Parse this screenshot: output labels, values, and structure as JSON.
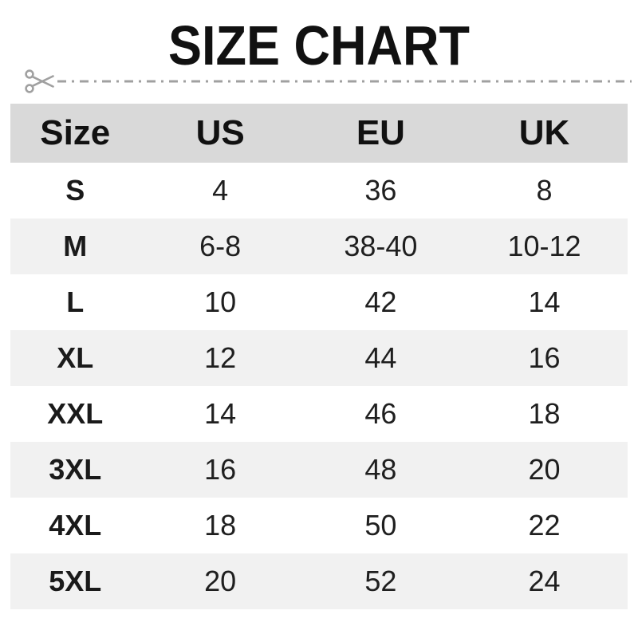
{
  "chart_data": {
    "type": "table",
    "title": "SIZE CHART",
    "columns": [
      "Size",
      "US",
      "EU",
      "UK"
    ],
    "rows": [
      [
        "S",
        "4",
        "36",
        "8"
      ],
      [
        "M",
        "6-8",
        "38-40",
        "10-12"
      ],
      [
        "L",
        "10",
        "42",
        "14"
      ],
      [
        "XL",
        "12",
        "44",
        "16"
      ],
      [
        "XXL",
        "14",
        "46",
        "18"
      ],
      [
        "3XL",
        "16",
        "48",
        "20"
      ],
      [
        "4XL",
        "18",
        "50",
        "22"
      ],
      [
        "5XL",
        "20",
        "52",
        "24"
      ]
    ],
    "layout_hints": {
      "header_band": true,
      "alternating_rows": "odd rows shaded",
      "grid": false
    }
  },
  "colors": {
    "background": "#ffffff",
    "header_bg": "#d9d9d9",
    "alt_row_bg": "#f1f1f1",
    "text": "#1a1a1a",
    "cut_line": "#a0a0a0"
  }
}
